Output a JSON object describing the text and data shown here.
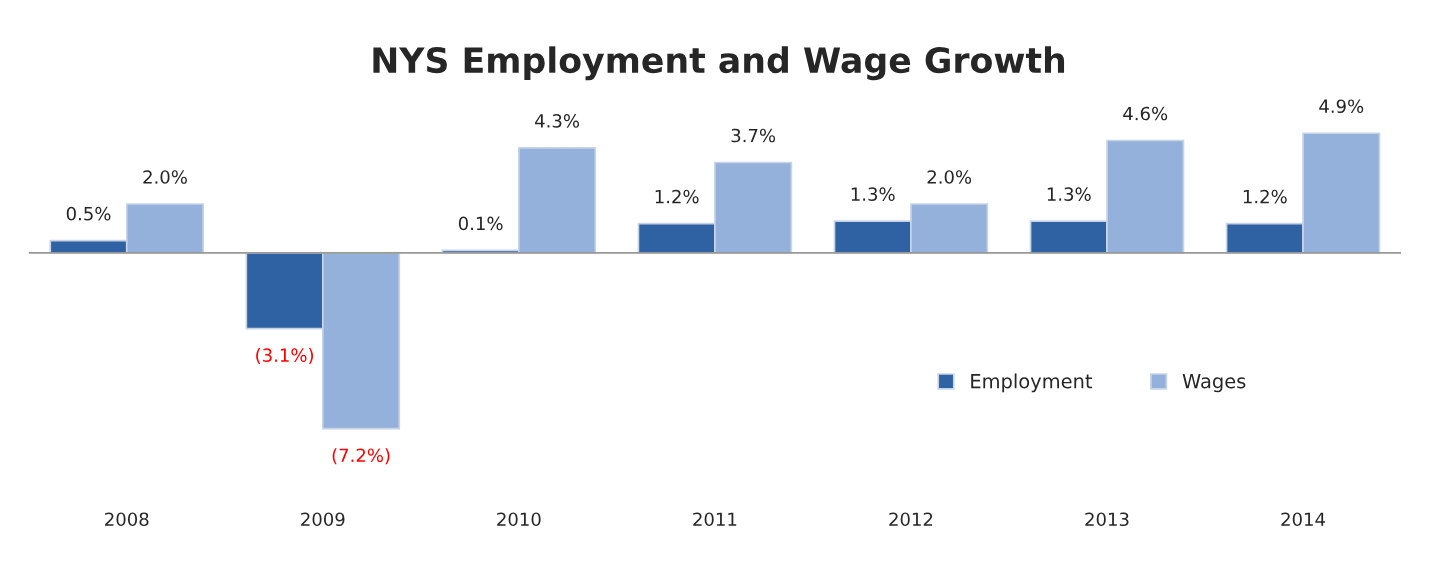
{
  "chart_data": {
    "type": "bar",
    "title": "NYS Employment and Wage Growth",
    "categories": [
      "2008",
      "2009",
      "2010",
      "2011",
      "2012",
      "2013",
      "2014"
    ],
    "series": [
      {
        "name": "Employment",
        "color": "#2f62a3",
        "values": [
          0.5,
          -3.1,
          0.1,
          1.2,
          1.3,
          1.3,
          1.2
        ],
        "value_labels": [
          "0.5%",
          "(3.1%)",
          "0.1%",
          "1.2%",
          "1.3%",
          "1.3%",
          "1.2%"
        ]
      },
      {
        "name": "Wages",
        "color": "#93b1da",
        "values": [
          2.0,
          -7.2,
          4.3,
          3.7,
          2.0,
          4.6,
          4.9
        ],
        "value_labels": [
          "2.0%",
          "(7.2%)",
          "4.3%",
          "3.7%",
          "2.0%",
          "4.6%",
          "4.9%"
        ]
      }
    ],
    "legend": "right",
    "grid": false
  }
}
